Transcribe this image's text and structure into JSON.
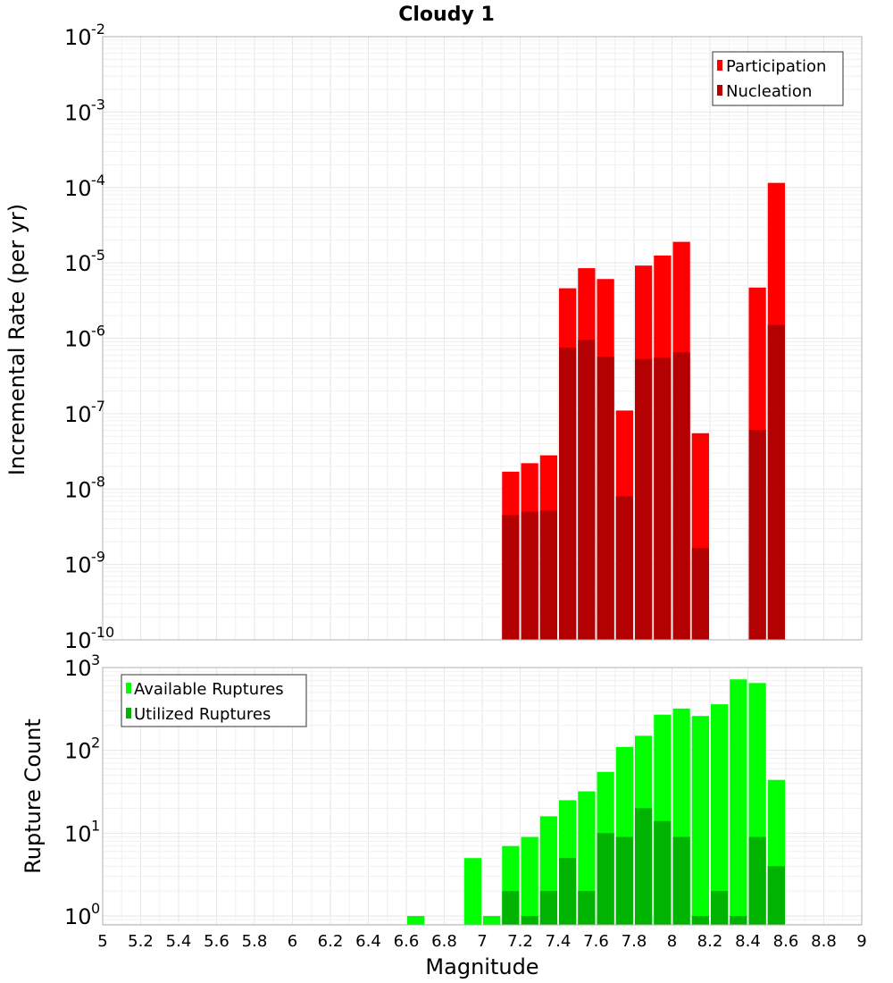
{
  "chart_data": [
    {
      "type": "bar",
      "title": "Cloudy 1",
      "xlabel": "",
      "ylabel": "Incremental Rate (per yr)",
      "yscale": "log",
      "xlim": [
        5,
        9
      ],
      "ylim": [
        1e-10,
        0.01
      ],
      "yticks": [
        {
          "base": "10",
          "exp": "-2"
        },
        {
          "base": "10",
          "exp": "-3"
        },
        {
          "base": "10",
          "exp": "-4"
        },
        {
          "base": "10",
          "exp": "-5"
        },
        {
          "base": "10",
          "exp": "-6"
        },
        {
          "base": "10",
          "exp": "-7"
        },
        {
          "base": "10",
          "exp": "-8"
        },
        {
          "base": "10",
          "exp": "-9"
        },
        {
          "base": "10",
          "exp": "-10"
        }
      ],
      "grid": true,
      "legend_position": "top-right",
      "bar_width": 0.1,
      "x": [
        7.15,
        7.25,
        7.35,
        7.45,
        7.55,
        7.65,
        7.75,
        7.85,
        7.95,
        8.05,
        8.15,
        8.45,
        8.55
      ],
      "series": [
        {
          "name": "Participation",
          "color": "#ff0000",
          "values": [
            1.7e-08,
            2.2e-08,
            2.8e-08,
            4.6e-06,
            8.5e-06,
            6.1e-06,
            1.1e-07,
            9.2e-06,
            1.25e-05,
            1.9e-05,
            5.5e-08,
            4.7e-06,
            0.000115
          ]
        },
        {
          "name": "Nucleation",
          "color": "#b30000",
          "values": [
            4.5e-09,
            5e-09,
            5.2e-09,
            7.5e-07,
            9.5e-07,
            5.7e-07,
            8e-09,
            5.3e-07,
            5.5e-07,
            6.5e-07,
            1.65e-09,
            6.1e-08,
            1.5e-06
          ]
        }
      ]
    },
    {
      "type": "bar",
      "title": "",
      "xlabel": "Magnitude",
      "ylabel": "Rupture Count",
      "yscale": "log",
      "xlim": [
        5,
        9
      ],
      "ylim": [
        0.78,
        1000
      ],
      "xticks": [
        "5",
        "5.2",
        "5.4",
        "5.6",
        "5.8",
        "6",
        "6.2",
        "6.4",
        "6.6",
        "6.8",
        "7",
        "7.2",
        "7.4",
        "7.6",
        "7.8",
        "8",
        "8.2",
        "8.4",
        "8.6",
        "8.8",
        "9"
      ],
      "yticks": [
        {
          "base": "10",
          "exp": "3"
        },
        {
          "base": "10",
          "exp": "2"
        },
        {
          "base": "10",
          "exp": "1"
        },
        {
          "base": "10",
          "exp": "0"
        }
      ],
      "grid": true,
      "legend_position": "top-left",
      "bar_width": 0.1,
      "x": [
        6.65,
        6.95,
        7.05,
        7.15,
        7.25,
        7.35,
        7.45,
        7.55,
        7.65,
        7.75,
        7.85,
        7.95,
        8.05,
        8.15,
        8.25,
        8.35,
        8.45,
        8.55
      ],
      "series": [
        {
          "name": "Available Ruptures",
          "color": "#00ff00",
          "values": [
            1,
            5,
            1,
            7,
            9,
            16,
            25,
            32,
            55,
            110,
            150,
            270,
            320,
            260,
            360,
            720,
            650,
            44
          ]
        },
        {
          "name": "Utilized Ruptures",
          "color": "#00b300",
          "values": [
            0,
            0,
            0,
            2,
            1,
            2,
            5,
            2,
            10,
            9,
            20,
            14,
            9,
            1,
            2,
            1,
            9,
            4
          ]
        }
      ]
    }
  ]
}
